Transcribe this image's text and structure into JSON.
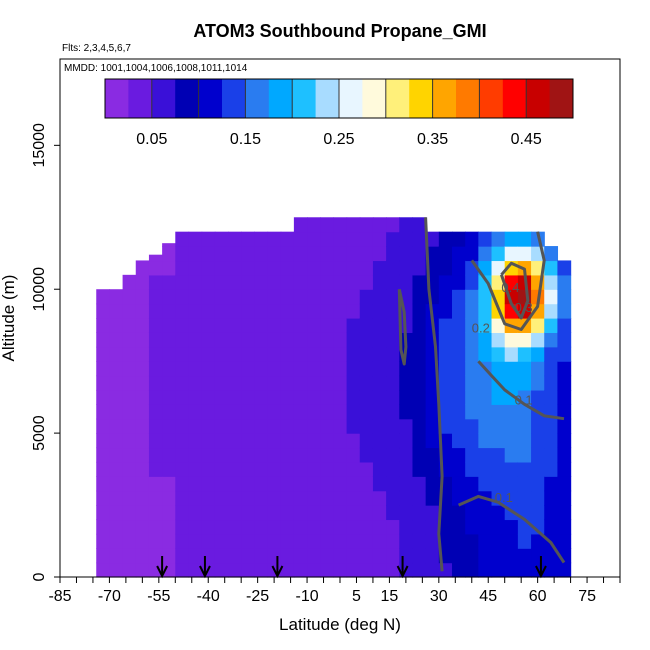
{
  "chart_data": {
    "type": "heatmap",
    "title": "ATOM3 Southbound Propane_GMI",
    "subtitle_flights": "Flts: 2,3,4,5,6,7",
    "subtitle_dates": "MMDD: 1001,1004,1006,1008,1011,1014",
    "xlabel": "Latitude (deg N)",
    "ylabel": "Altitude (m)",
    "xlim": [
      -85,
      85
    ],
    "ylim": [
      0,
      18000
    ],
    "x_ticks": [
      -85,
      -70,
      -55,
      -40,
      -25,
      -10,
      5,
      15,
      30,
      45,
      60,
      75
    ],
    "x_tick_labels": [
      "-85",
      "-70",
      "-55",
      "-40",
      "-25",
      "-10",
      "5",
      "15",
      "30",
      "45",
      "60",
      "75"
    ],
    "y_ticks": [
      0,
      5000,
      10000,
      15000
    ],
    "y_tick_labels": [
      "0",
      "5000",
      "10000",
      "15000"
    ],
    "colorbar": {
      "range": [
        0,
        0.5
      ],
      "ticks": [
        0.05,
        0.15,
        0.25,
        0.35,
        0.45
      ],
      "tick_labels": [
        "0.05",
        "0.15",
        "0.25",
        "0.35",
        "0.45"
      ],
      "colors": [
        "#8a2be2",
        "#6a1be0",
        "#3a10d8",
        "#0000b4",
        "#0000cd",
        "#1a40e8",
        "#2a7cf0",
        "#00a8ff",
        "#1ec0ff",
        "#a8dcff",
        "#e8f6ff",
        "#fffadc",
        "#fff07a",
        "#ffd400",
        "#ffa500",
        "#ff7a00",
        "#ff3c00",
        "#ff0000",
        "#c80000",
        "#a01414"
      ]
    },
    "flight_markers_lat": [
      -54,
      -41,
      -19,
      19,
      61
    ],
    "contour_labels": [
      "0.2",
      "0.1",
      "0.1",
      "0.4",
      "0.3"
    ],
    "grid": false,
    "data_x_extent": [
      -72,
      71
    ],
    "columns": [
      {
        "lat": -72,
        "top": 10000,
        "bottom": 0,
        "base": 0.02,
        "mid": 0.02
      },
      {
        "lat": -68,
        "top": 10000,
        "bottom": 0,
        "base": 0.02,
        "mid": 0.02
      },
      {
        "lat": -64,
        "top": 10500,
        "bottom": 0,
        "base": 0.02,
        "mid": 0.025
      },
      {
        "lat": -60,
        "top": 11000,
        "bottom": 0,
        "base": 0.02,
        "mid": 0.025
      },
      {
        "lat": -56,
        "top": 11200,
        "bottom": 0,
        "base": 0.02,
        "mid": 0.03
      },
      {
        "lat": -52,
        "top": 11600,
        "bottom": 0,
        "base": 0.02,
        "mid": 0.03
      },
      {
        "lat": -48,
        "top": 12000,
        "bottom": 0,
        "base": 0.025,
        "mid": 0.03
      },
      {
        "lat": -44,
        "top": 12000,
        "bottom": 0,
        "base": 0.025,
        "mid": 0.03
      },
      {
        "lat": -40,
        "top": 12000,
        "bottom": 0,
        "base": 0.025,
        "mid": 0.035
      },
      {
        "lat": -36,
        "top": 12000,
        "bottom": 0,
        "base": 0.025,
        "mid": 0.04
      },
      {
        "lat": -32,
        "top": 12000,
        "bottom": 0,
        "base": 0.025,
        "mid": 0.035
      },
      {
        "lat": -28,
        "top": 12000,
        "bottom": 0,
        "base": 0.025,
        "mid": 0.04
      },
      {
        "lat": -24,
        "top": 12000,
        "bottom": 0,
        "base": 0.025,
        "mid": 0.045
      },
      {
        "lat": -20,
        "top": 12000,
        "bottom": 0,
        "base": 0.025,
        "mid": 0.045
      },
      {
        "lat": -16,
        "top": 12000,
        "bottom": 0,
        "base": 0.025,
        "mid": 0.04
      },
      {
        "lat": -12,
        "top": 12500,
        "bottom": 0,
        "base": 0.025,
        "mid": 0.045
      },
      {
        "lat": -8,
        "top": 12500,
        "bottom": 0,
        "base": 0.025,
        "mid": 0.05
      },
      {
        "lat": -4,
        "top": 12500,
        "bottom": 0,
        "base": 0.025,
        "mid": 0.05
      },
      {
        "lat": 0,
        "top": 12500,
        "bottom": 0,
        "base": 0.03,
        "mid": 0.05
      },
      {
        "lat": 4,
        "top": 12500,
        "bottom": 0,
        "base": 0.03,
        "mid": 0.055
      },
      {
        "lat": 8,
        "top": 12500,
        "bottom": 0,
        "base": 0.035,
        "mid": 0.06
      },
      {
        "lat": 12,
        "top": 12500,
        "bottom": 0,
        "base": 0.04,
        "mid": 0.065
      },
      {
        "lat": 16,
        "top": 12500,
        "bottom": 0,
        "base": 0.045,
        "mid": 0.07
      },
      {
        "lat": 20,
        "top": 12500,
        "bottom": 0,
        "base": 0.05,
        "mid": 0.08
      },
      {
        "lat": 24,
        "top": 12500,
        "bottom": 0,
        "base": 0.06,
        "mid": 0.09
      },
      {
        "lat": 28,
        "top": 12000,
        "bottom": 0,
        "base": 0.06,
        "mid": 0.12
      },
      {
        "lat": 32,
        "top": 12000,
        "bottom": 0,
        "base": 0.07,
        "mid": 0.14
      },
      {
        "lat": 36,
        "top": 12000,
        "bottom": 0,
        "base": 0.08,
        "mid": 0.15
      },
      {
        "lat": 40,
        "top": 12000,
        "bottom": 0,
        "base": 0.09,
        "mid": 0.16
      },
      {
        "lat": 44,
        "top": 12000,
        "bottom": 0,
        "base": 0.1,
        "mid": 0.17
      },
      {
        "lat": 48,
        "top": 12000,
        "bottom": 0,
        "base": 0.1,
        "mid": 0.18
      },
      {
        "lat": 52,
        "top": 12000,
        "bottom": 0,
        "base": 0.11,
        "mid": 0.18
      },
      {
        "lat": 56,
        "top": 12000,
        "bottom": 0,
        "base": 0.12,
        "mid": 0.17
      },
      {
        "lat": 60,
        "top": 12000,
        "bottom": 0,
        "base": 0.12,
        "mid": 0.15
      },
      {
        "lat": 64,
        "top": 11500,
        "bottom": 0,
        "base": 0.12,
        "mid": 0.13
      },
      {
        "lat": 68,
        "top": 11000,
        "bottom": 0,
        "base": 0.11,
        "mid": 0.12
      }
    ],
    "plume": {
      "lat_center": 55,
      "lat_width": 9,
      "alt_center": 9800,
      "alt_width": 1500,
      "peak": 0.5
    }
  }
}
